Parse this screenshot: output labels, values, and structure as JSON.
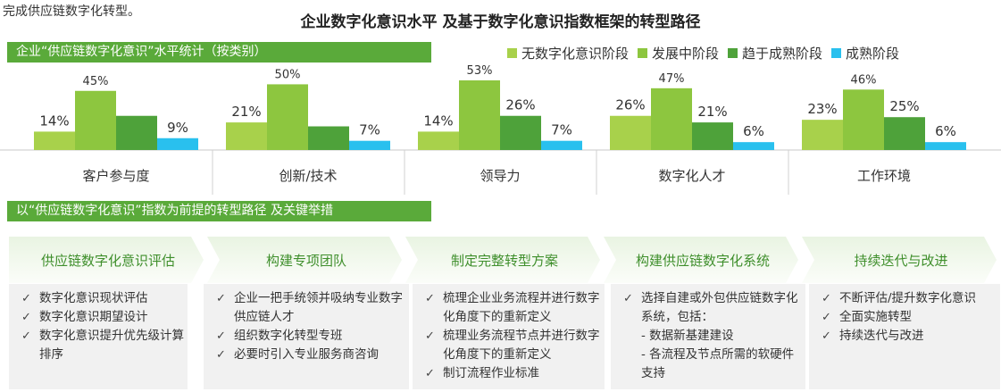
{
  "top_note": "完成供应链数字化转型。",
  "main_title": "企业数字化意识水平 及基于数字化意识指数框架的转型路径",
  "section1_title": "企业“供应链数字化意识”水平统计（按类别）",
  "section2_title": "以“供应链数字化意识”指数为前提的转型路径 及关键举措",
  "legend": [
    {
      "label": "无数字化意识阶段",
      "color": "#a8d14b"
    },
    {
      "label": "发展中阶段",
      "color": "#8dc63f"
    },
    {
      "label": "趋于成熟阶段",
      "color": "#4ea23a"
    },
    {
      "label": "成熟阶段",
      "color": "#29c0ee"
    }
  ],
  "chart_data": {
    "type": "bar",
    "categories": [
      "客户参与度",
      "创新/技术",
      "领导力",
      "数字化人才",
      "工作环境"
    ],
    "series": [
      {
        "name": "无数字化意识阶段",
        "values": [
          14,
          21,
          14,
          26,
          23
        ],
        "color": "#a8d14b"
      },
      {
        "name": "发展中阶段",
        "values": [
          45,
          50,
          53,
          47,
          46
        ],
        "color": "#8dc63f"
      },
      {
        "name": "趋于成熟阶段",
        "values": [
          26,
          18,
          26,
          21,
          25
        ],
        "color": "#4ea23a"
      },
      {
        "name": "成熟阶段",
        "values": [
          9,
          7,
          7,
          6,
          6
        ],
        "color": "#29c0ee"
      }
    ],
    "data_labels": [
      [
        "14%",
        "45%",
        "",
        "9%"
      ],
      [
        "21%",
        "50%",
        "",
        "7%"
      ],
      [
        "14%",
        "53%",
        "26%",
        "7%"
      ],
      [
        "26%",
        "47%",
        "21%",
        "6%"
      ],
      [
        "23%",
        "46%",
        "25%",
        "6%"
      ]
    ],
    "ylim": [
      0,
      60
    ]
  },
  "steps": [
    {
      "label": "供应链数字化意识评估",
      "items": [
        "数字化意识现状评估",
        "数字化意识期望设计",
        "数字化意识提升优先级计算排序"
      ],
      "subs": []
    },
    {
      "label": "构建专项团队",
      "items": [
        "企业一把手统领并吸纳专业数字供应链人才",
        "组织数字化转型专班",
        "必要时引入专业服务商咨询"
      ],
      "subs": []
    },
    {
      "label": "制定完整转型方案",
      "items": [
        "梳理企业业务流程并进行数字化角度下的重新定义",
        "梳理业务流程节点并进行数字化角度下的重新定义",
        "制订流程作业标准"
      ],
      "subs": []
    },
    {
      "label": "构建供应链数字化系统",
      "items": [
        "选择自建或外包供应链数字化系统，包括："
      ],
      "subs": [
        "- 数据新基建建设",
        "- 各流程及节点所需的软硬件支持"
      ]
    },
    {
      "label": "持续迭代与改进",
      "items": [
        "不断评估/提升数字化意识",
        "全面实施转型",
        "持续迭代与改进"
      ],
      "subs": []
    }
  ]
}
